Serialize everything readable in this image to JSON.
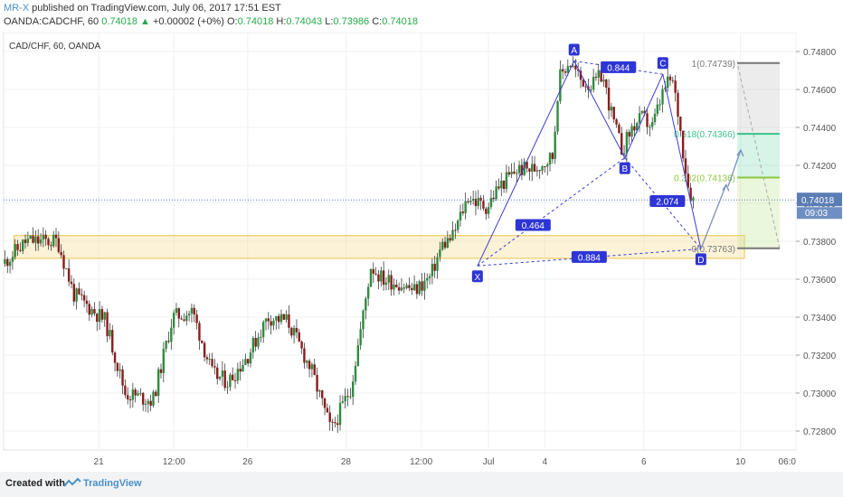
{
  "header": {
    "user": "MR-X",
    "published": "published on TradingView.com, July 06, 2017 17:51 EST",
    "symbol_line": "OANDA:CADCHF, 60",
    "last": "0.74018",
    "change_arrow": "▲",
    "change": "+0.00002 (+0%)",
    "o_label": "O:",
    "o": "0.74018",
    "h_label": "H:",
    "h": "0.74043",
    "l_label": "L:",
    "l": "0.73986",
    "c_label": "C:",
    "c": "0.74018"
  },
  "chart_title": "CAD/CHF, 60, OANDA",
  "footer": {
    "created": "Created with",
    "brand": "TradingView"
  },
  "colors": {
    "bull": "#2e8b3e",
    "bear": "#8b1c1c",
    "pattern": "#3c3ccf",
    "box": "#f0c24a",
    "fib_green": "#3cc08c",
    "fib_lime": "#8cc63f"
  },
  "chart_data": {
    "type": "candlestick",
    "title": "CAD/CHF, 60, OANDA",
    "ylim": [
      0.727,
      0.749
    ],
    "y_ticks": [
      "0.74800",
      "0.74600",
      "0.74400",
      "0.74200",
      "0.74000",
      "0.73800",
      "0.73600",
      "0.73400",
      "0.73200",
      "0.73000",
      "0.72800"
    ],
    "y_tick_values": [
      0.748,
      0.746,
      0.744,
      0.742,
      0.74,
      0.738,
      0.736,
      0.734,
      0.732,
      0.73,
      0.728
    ],
    "x_ticks": [
      "21",
      "12:00",
      "26",
      "28",
      "12:00",
      "Jul",
      "4",
      "6",
      "10",
      "06:0"
    ],
    "x_tick_positions": [
      0.12,
      0.215,
      0.308,
      0.432,
      0.527,
      0.612,
      0.683,
      0.808,
      0.93,
      1.0
    ],
    "current_price": "0.74018",
    "current_price_value": 0.74018,
    "countdown": "09:03",
    "close_path": [
      [
        0.0,
        0.7368
      ],
      [
        0.03,
        0.738
      ],
      [
        0.07,
        0.738
      ],
      [
        0.09,
        0.7352
      ],
      [
        0.11,
        0.7345
      ],
      [
        0.13,
        0.7338
      ],
      [
        0.155,
        0.73
      ],
      [
        0.19,
        0.7296
      ],
      [
        0.215,
        0.734
      ],
      [
        0.24,
        0.7343
      ],
      [
        0.265,
        0.731
      ],
      [
        0.285,
        0.7306
      ],
      [
        0.31,
        0.732
      ],
      [
        0.335,
        0.734
      ],
      [
        0.36,
        0.7338
      ],
      [
        0.39,
        0.7312
      ],
      [
        0.415,
        0.728
      ],
      [
        0.44,
        0.7303
      ],
      [
        0.455,
        0.734
      ],
      [
        0.465,
        0.7367
      ],
      [
        0.48,
        0.736
      ],
      [
        0.5,
        0.7358
      ],
      [
        0.52,
        0.7354
      ],
      [
        0.54,
        0.7361
      ],
      [
        0.555,
        0.7378
      ],
      [
        0.568,
        0.7382
      ],
      [
        0.588,
        0.7404
      ],
      [
        0.6,
        0.74
      ],
      [
        0.612,
        0.7398
      ],
      [
        0.625,
        0.7408
      ],
      [
        0.65,
        0.7418
      ],
      [
        0.67,
        0.7418
      ],
      [
        0.695,
        0.7425
      ],
      [
        0.702,
        0.7465
      ],
      [
        0.715,
        0.7475
      ],
      [
        0.73,
        0.7465
      ],
      [
        0.745,
        0.7462
      ],
      [
        0.757,
        0.7468
      ],
      [
        0.77,
        0.7445
      ],
      [
        0.782,
        0.7428
      ],
      [
        0.795,
        0.744
      ],
      [
        0.808,
        0.7445
      ],
      [
        0.82,
        0.744
      ],
      [
        0.835,
        0.746
      ],
      [
        0.845,
        0.7466
      ],
      [
        0.852,
        0.745
      ],
      [
        0.86,
        0.7425
      ],
      [
        0.866,
        0.7408
      ],
      [
        0.872,
        0.7402
      ]
    ],
    "harmonic": {
      "points": {
        "X": [
          0.598,
          0.7367
        ],
        "A": [
          0.72,
          0.7475
        ],
        "B": [
          0.784,
          0.7424
        ],
        "C": [
          0.832,
          0.7468
        ],
        "D": [
          0.88,
          0.7376
        ]
      },
      "ratios": {
        "AB_XA": "0.844",
        "BC_XB": "0.464",
        "CD_BC": "2.074",
        "XD": "0.884"
      },
      "labels": [
        "X",
        "A",
        "B",
        "C",
        "D"
      ]
    },
    "zone": {
      "top": 0.7383,
      "bottom": 0.7371,
      "x0": 0.013,
      "x1": 0.935
    },
    "fib": [
      {
        "label": "1(0.74739)",
        "value": 0.74739,
        "color": "#777777"
      },
      {
        "label": "0.618(0.74366)",
        "value": 0.74366,
        "color": "#3cc08c"
      },
      {
        "label": "0.382(0.74136)",
        "value": 0.74136,
        "color": "#8cc63f"
      },
      {
        "label": "0(0.73763)",
        "value": 0.73763,
        "color": "#777777"
      }
    ]
  }
}
